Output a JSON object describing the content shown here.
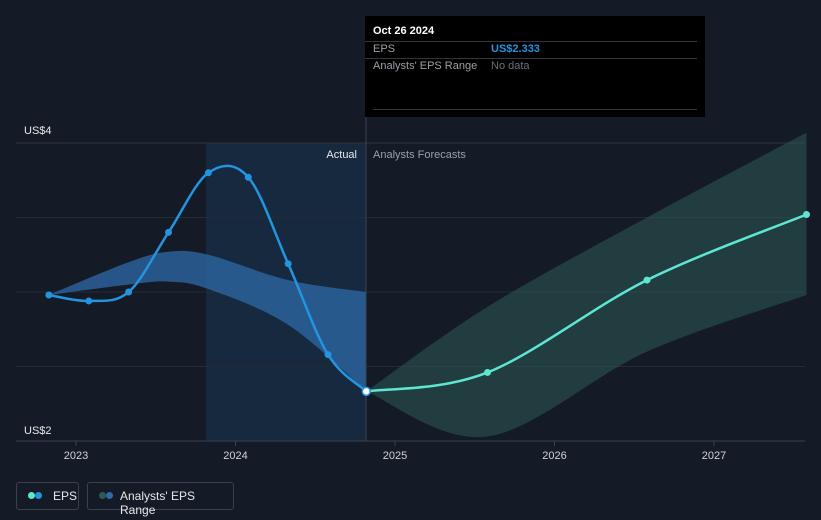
{
  "chart_data": {
    "type": "line",
    "y_axis": {
      "top_label": "US$4",
      "bottom_label": "US$2",
      "ylim": [
        2,
        4
      ]
    },
    "x_axis": {
      "tick_labels": [
        "2023",
        "2024",
        "2025",
        "2026",
        "2027"
      ],
      "ticks": [
        2023,
        2024,
        2025,
        2026,
        2027
      ]
    },
    "region_labels": {
      "actual": "Actual",
      "forecast": "Analysts Forecasts"
    },
    "series": [
      {
        "name": "EPS",
        "color": "#2394df",
        "points": [
          {
            "x": 2022.83,
            "y": 2.98
          },
          {
            "x": 2023.08,
            "y": 2.94
          },
          {
            "x": 2023.33,
            "y": 3.0
          },
          {
            "x": 2023.58,
            "y": 3.4
          },
          {
            "x": 2023.83,
            "y": 3.8
          },
          {
            "x": 2024.08,
            "y": 3.77
          },
          {
            "x": 2024.33,
            "y": 3.19
          },
          {
            "x": 2024.58,
            "y": 2.58
          },
          {
            "x": 2024.82,
            "y": 2.333
          }
        ]
      },
      {
        "name": "EPS forecast",
        "color": "#5ce6d3",
        "points": [
          {
            "x": 2024.82,
            "y": 2.333
          },
          {
            "x": 2025.58,
            "y": 2.46
          },
          {
            "x": 2026.58,
            "y": 3.08
          },
          {
            "x": 2027.58,
            "y": 3.52
          }
        ]
      }
    ],
    "ranges": [
      {
        "name": "Analysts' EPS Range (past)",
        "color": "#2d6aa8",
        "x": [
          2022.83,
          2023.33,
          2023.58,
          2023.83,
          2024.33,
          2024.82
        ],
        "high": [
          2.98,
          3.2,
          3.27,
          3.25,
          3.08,
          3.0
        ],
        "low": [
          2.98,
          3.05,
          3.07,
          3.02,
          2.78,
          2.333
        ]
      },
      {
        "name": "Analysts' EPS Range (forecast)",
        "color": "#2e5a56",
        "x": [
          2024.82,
          2025.58,
          2026.58,
          2027.58
        ],
        "high": [
          2.333,
          2.9,
          3.5,
          4.07
        ],
        "low": [
          2.333,
          2.03,
          2.6,
          2.98
        ]
      }
    ],
    "tooltip": {
      "date": "Oct 26 2024",
      "rows": [
        {
          "label": "EPS",
          "value": "US$2.333"
        },
        {
          "label": "Analysts' EPS Range",
          "value": "No data"
        }
      ]
    },
    "legend": [
      {
        "label": "EPS",
        "color": "#2394df"
      },
      {
        "label": "Analysts' EPS Range",
        "color": "#2e5a56"
      }
    ]
  }
}
